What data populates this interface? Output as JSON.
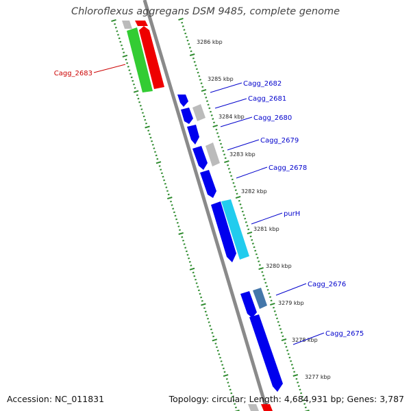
{
  "title": "Chloroflexus aggregans DSM 9485, complete genome",
  "footer": {
    "accession": "Accession: NC_011831",
    "stats": "Topology: circular; Length: 4,684,931 bp; Genes: 3,787"
  },
  "colors": {
    "backbone": "#888888",
    "tick": "#2e8b2e",
    "forward_gene": "#0000ee",
    "pseudo_gene": "#bbbbbb",
    "rna_gene": "#33cc33",
    "selected_gene": "#ee0000",
    "purH": "#22ccee",
    "alt_gene": "#4477aa",
    "label_blue": "#0000cc",
    "label_red": "#cc0000"
  },
  "kbp_labels": [
    "3286 kbp",
    "3285 kbp",
    "3284 kbp",
    "3283 kbp",
    "3282 kbp",
    "3281 kbp",
    "3280 kbp",
    "3279 kbp",
    "3278 kbp",
    "3277 kbp"
  ],
  "gene_labels": [
    {
      "name": "Cagg_2683",
      "color": "red"
    },
    {
      "name": "Cagg_2682",
      "color": "blue"
    },
    {
      "name": "Cagg_2681",
      "color": "blue"
    },
    {
      "name": "Cagg_2680",
      "color": "blue"
    },
    {
      "name": "Cagg_2679",
      "color": "blue"
    },
    {
      "name": "Cagg_2678",
      "color": "blue"
    },
    {
      "name": "purH",
      "color": "blue"
    },
    {
      "name": "Cagg_2676",
      "color": "blue"
    },
    {
      "name": "Cagg_2675",
      "color": "blue"
    }
  ]
}
